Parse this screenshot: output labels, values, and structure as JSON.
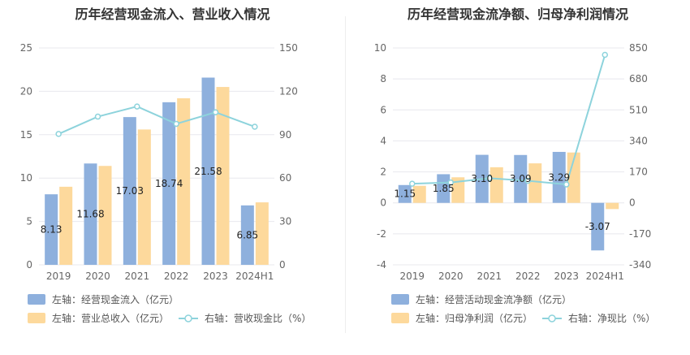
{
  "colors": {
    "bar_primary": "#8eb0dd",
    "bar_secondary": "#fdd99c",
    "line": "#8dd3dc",
    "grid": "#e8e8ee"
  },
  "chart_data": [
    {
      "type": "bar",
      "title": "历年经营现金流入、营业收入情况",
      "categories": [
        "2019",
        "2020",
        "2021",
        "2022",
        "2023",
        "2024H1"
      ],
      "left_axis": {
        "ylim": [
          0,
          25
        ],
        "ticks": [
          "0",
          "5",
          "10",
          "15",
          "20",
          "25"
        ]
      },
      "right_axis": {
        "ylim": [
          0,
          150
        ],
        "ticks": [
          "0",
          "30",
          "60",
          "90",
          "120",
          "150"
        ]
      },
      "series": [
        {
          "name": "左轴：经营现金流入（亿元）",
          "axis": "left",
          "type": "bar",
          "values": [
            8.13,
            11.68,
            17.03,
            18.74,
            21.58,
            6.85
          ],
          "labels": [
            "8.13",
            "11.68",
            "17.03",
            "18.74",
            "21.58",
            "6.85"
          ]
        },
        {
          "name": "左轴：营业总收入（亿元）",
          "axis": "left",
          "type": "bar",
          "values": [
            9.0,
            11.4,
            15.6,
            19.2,
            20.5,
            7.2
          ]
        },
        {
          "name": "右轴：营收现金比（%）",
          "axis": "right",
          "type": "line",
          "values": [
            90.5,
            102.5,
            109.5,
            97.5,
            105.5,
            95.5
          ]
        }
      ]
    },
    {
      "type": "bar",
      "title": "历年经营现金流净额、归母净利润情况",
      "categories": [
        "2019",
        "2020",
        "2021",
        "2022",
        "2023",
        "2024H1"
      ],
      "left_axis": {
        "ylim": [
          -4,
          10
        ],
        "ticks": [
          "-4",
          "-2",
          "0",
          "2",
          "4",
          "6",
          "8",
          "10"
        ]
      },
      "right_axis": {
        "ylim": [
          -340,
          850
        ],
        "ticks": [
          "-340",
          "-170",
          "0",
          "170",
          "340",
          "510",
          "680",
          "850"
        ]
      },
      "series": [
        {
          "name": "左轴：经营活动现金流净额（亿元）",
          "axis": "left",
          "type": "bar",
          "values": [
            1.15,
            1.85,
            3.1,
            3.09,
            3.29,
            -3.07
          ],
          "labels": [
            "1.15",
            "1.85",
            "3.10",
            "3.09",
            "3.29",
            "-3.07"
          ]
        },
        {
          "name": "左轴：归母净利润（亿元）",
          "axis": "left",
          "type": "bar",
          "values": [
            1.1,
            1.65,
            2.3,
            2.55,
            3.25,
            -0.4
          ]
        },
        {
          "name": "右轴：净现比（%）",
          "axis": "right",
          "type": "line",
          "values": [
            105,
            112,
            135,
            121,
            101,
            812
          ]
        }
      ]
    }
  ]
}
